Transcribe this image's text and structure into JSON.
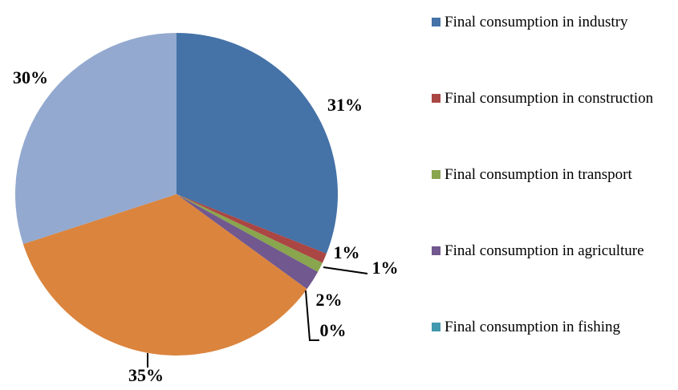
{
  "chart_data": {
    "type": "pie",
    "categories": [
      "Final consumption in industry",
      "Final consumption in construction",
      "Final consumption in transport",
      "Final consumption in agriculture",
      "Final consumption in fishing",
      null,
      null
    ],
    "values": [
      31,
      1,
      1,
      2,
      0,
      35,
      30
    ],
    "value_labels": [
      "31%",
      "1%",
      "1%",
      "2%",
      "0%",
      "35%",
      "30%"
    ],
    "colors": [
      "#4572a7",
      "#aa4643",
      "#89a54e",
      "#71588f",
      "#4198af",
      "#db843d",
      "#93a9cf"
    ],
    "legend": "right"
  }
}
